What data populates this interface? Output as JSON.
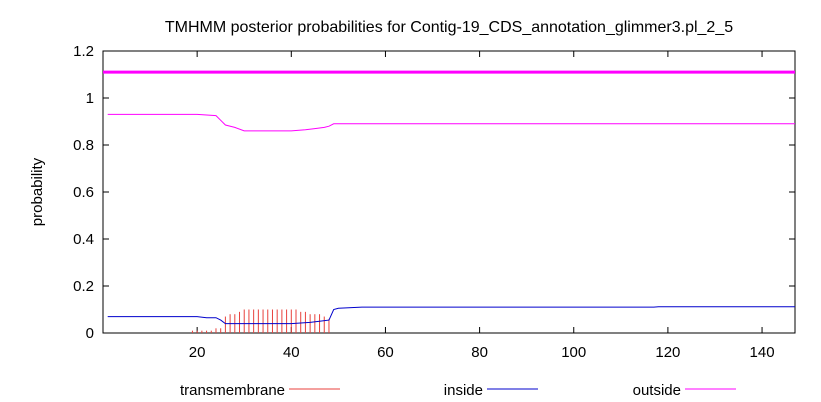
{
  "chart_data": {
    "type": "line",
    "title": "TMHMM posterior probabilities for Contig-19_CDS_annotation_glimmer3.pl_2_5",
    "xlabel": "",
    "ylabel": "probability",
    "xlim": [
      0,
      147
    ],
    "ylim": [
      0,
      1.2
    ],
    "x_ticks": [
      20,
      40,
      60,
      80,
      100,
      120,
      140
    ],
    "y_ticks": [
      0,
      0.2,
      0.4,
      0.6,
      0.8,
      1,
      1.2
    ],
    "x_tick_labels": [
      "20",
      "40",
      "60",
      "80",
      "100",
      "120",
      "140"
    ],
    "y_tick_labels": [
      "0",
      "0.2",
      "0.4",
      "0.6",
      "0.8",
      "1",
      "1.2"
    ],
    "grid": false,
    "legend_position": "bottom",
    "legend": [
      "transmembrane",
      "inside",
      "outside"
    ],
    "colors": {
      "transmembrane": "#e8413c",
      "inside": "#0000cc",
      "outside": "#ff00ff"
    },
    "top_line_value": 1.11,
    "series": [
      {
        "name": "transmembrane",
        "style": "impulses",
        "x": [
          19,
          20,
          21,
          22,
          23,
          24,
          25,
          26,
          27,
          28,
          29,
          30,
          31,
          32,
          33,
          34,
          35,
          36,
          37,
          38,
          39,
          40,
          41,
          42,
          43,
          44,
          45,
          46,
          47,
          48
        ],
        "y": [
          0.01,
          0.01,
          0.01,
          0.01,
          0.01,
          0.02,
          0.02,
          0.07,
          0.08,
          0.08,
          0.09,
          0.1,
          0.1,
          0.1,
          0.1,
          0.1,
          0.1,
          0.1,
          0.1,
          0.1,
          0.1,
          0.1,
          0.1,
          0.09,
          0.09,
          0.08,
          0.08,
          0.08,
          0.07,
          0.06
        ]
      },
      {
        "name": "inside",
        "style": "line",
        "x": [
          1,
          18,
          20,
          22,
          24,
          25,
          26,
          28,
          30,
          35,
          40,
          44,
          46,
          48,
          49,
          50,
          55,
          60,
          80,
          100,
          117,
          118,
          147
        ],
        "y": [
          0.07,
          0.07,
          0.07,
          0.065,
          0.065,
          0.055,
          0.04,
          0.04,
          0.04,
          0.04,
          0.04,
          0.045,
          0.05,
          0.055,
          0.1,
          0.105,
          0.11,
          0.11,
          0.11,
          0.11,
          0.11,
          0.112,
          0.112
        ]
      },
      {
        "name": "outside",
        "style": "line",
        "x": [
          1,
          18,
          20,
          24,
          25,
          26,
          28,
          30,
          35,
          40,
          43,
          45,
          47,
          48,
          49,
          147
        ],
        "y": [
          0.93,
          0.93,
          0.93,
          0.925,
          0.905,
          0.885,
          0.875,
          0.86,
          0.86,
          0.86,
          0.865,
          0.87,
          0.875,
          0.88,
          0.89,
          0.89
        ]
      }
    ]
  }
}
